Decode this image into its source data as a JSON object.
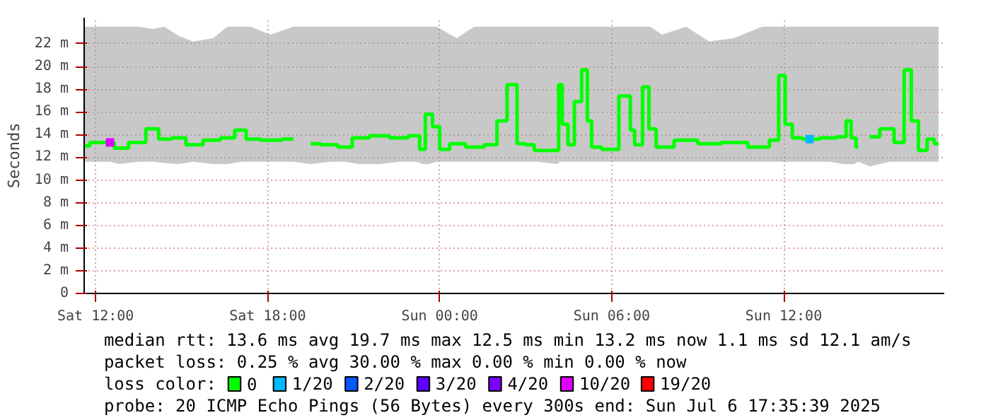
{
  "chart_data": {
    "type": "step",
    "ylabel": "Seconds",
    "legend_title": "loss color:",
    "legend": "bottom",
    "grid": true,
    "annotations": [
      "median rtt:  13.6 ms avg  19.7 ms max  12.5 ms min  13.2 ms now  1.1 ms sd  12.1   am/s",
      "packet loss: 0.25 % avg  30.00 % max  0.00 % min  0.00 % now",
      "probe:       20 ICMP Echo Pings (56 Bytes) every 300s            end: Sun Jul  6 17:35:39 2025"
    ],
    "xlim": [
      "2025-07-05T11:36",
      "2025-07-06T17:36"
    ],
    "ylim": [
      0,
      24.3
    ],
    "xticks": [
      {
        "value": "2025-07-05T12:00",
        "label": "Sat 12:00"
      },
      {
        "value": "2025-07-05T18:00",
        "label": "Sat 18:00"
      },
      {
        "value": "2025-07-06T00:00",
        "label": "Sun 00:00"
      },
      {
        "value": "2025-07-06T06:00",
        "label": "Sun 06:00"
      },
      {
        "value": "2025-07-06T12:00",
        "label": "Sun 12:00"
      }
    ],
    "yticks": [
      0,
      {
        "value": 2,
        "label": "2 m"
      },
      {
        "value": 4,
        "label": "4 m"
      },
      {
        "value": 6,
        "label": "6 m"
      },
      {
        "value": 8,
        "label": "8 m"
      },
      {
        "value": 10,
        "label": "10 m"
      },
      {
        "value": 12,
        "label": "12 m"
      },
      {
        "value": 14,
        "label": "14 m"
      },
      {
        "value": 16,
        "label": "16 m"
      },
      {
        "value": 18,
        "label": "18 m"
      },
      {
        "value": 20,
        "label": "20 m"
      },
      {
        "value": 22,
        "label": "22 m"
      }
    ],
    "x": [
      "2025-07-05T11:36",
      "2025-07-05T12:00",
      "2025-07-05T12:30",
      "2025-07-05T12:48",
      "2025-07-05T13:30",
      "2025-07-05T14:00",
      "2025-07-05T14:24",
      "2025-07-05T14:54",
      "2025-07-05T15:24",
      "2025-07-05T16:06",
      "2025-07-05T16:36",
      "2025-07-05T17:06",
      "2025-07-05T17:24",
      "2025-07-05T18:06",
      "2025-07-05T18:54",
      "2025-07-05T19:06",
      "2025-07-05T19:30",
      "2025-07-05T20:12",
      "2025-07-05T20:42",
      "2025-07-05T21:12",
      "2025-07-05T21:54",
      "2025-07-05T22:36",
      "2025-07-05T23:12",
      "2025-07-05T23:24",
      "2025-07-05T23:36",
      "2025-07-05T23:54",
      "2025-07-06T00:06",
      "2025-07-06T00:36",
      "2025-07-06T01:12",
      "2025-07-06T01:54",
      "2025-07-06T02:06",
      "2025-07-06T02:36",
      "2025-07-06T02:48",
      "2025-07-06T03:12",
      "2025-07-06T03:24",
      "2025-07-06T04:06",
      "2025-07-06T04:12",
      "2025-07-06T04:21",
      "2025-07-06T04:36",
      "2025-07-06T04:48",
      "2025-07-06T05:06",
      "2025-07-06T05:12",
      "2025-07-06T05:24",
      "2025-07-06T05:54",
      "2025-07-06T06:36",
      "2025-07-06T06:42",
      "2025-07-06T06:54",
      "2025-07-06T07:15",
      "2025-07-06T07:21",
      "2025-07-06T07:45",
      "2025-07-06T08:36",
      "2025-07-06T09:24",
      "2025-07-06T10:15",
      "2025-07-06T11:15",
      "2025-07-06T11:45",
      "2025-07-06T11:54",
      "2025-07-06T12:12",
      "2025-07-06T12:24",
      "2025-07-06T12:54",
      "2025-07-06T13:36",
      "2025-07-06T14:06",
      "2025-07-06T14:15",
      "2025-07-06T14:27",
      "2025-07-06T14:36",
      "2025-07-06T14:48",
      "2025-07-06T15:00",
      "2025-07-06T15:42",
      "2025-07-06T16:00",
      "2025-07-06T16:24",
      "2025-07-06T16:30",
      "2025-07-06T16:54",
      "2025-07-06T17:06",
      "2025-07-06T17:24"
    ],
    "series": [
      {
        "name": "0",
        "color": "#00ff00",
        "values": [
          13.0,
          13.3,
          13.3,
          12.8,
          13.3,
          14.5,
          13.6,
          13.7,
          13.1,
          13.5,
          13.7,
          14.4,
          13.6,
          13.5,
          13.6,
          null,
          13.2,
          13.1,
          12.9,
          13.7,
          13.9,
          13.7,
          13.9,
          12.7,
          15.8,
          14.7,
          12.7,
          13.2,
          12.9,
          13.1,
          15.2,
          18.4,
          13.2,
          13.1,
          12.6,
          12.6,
          18.4,
          14.9,
          13.1,
          16.9,
          19.7,
          15.2,
          12.9,
          12.7,
          17.4,
          14.4,
          13.1,
          18.2,
          14.5,
          12.9,
          13.5,
          13.2,
          13.3,
          12.9,
          13.5,
          19.2,
          14.9,
          13.7,
          13.6,
          13.7,
          13.8,
          15.2,
          13.7,
          12.9,
          null,
          13.8,
          14.5,
          13.3,
          19.7,
          15.2,
          12.6,
          13.6,
          13.2
        ],
        "lower": [
          11.6,
          11.6,
          11.6,
          11.4,
          11.6,
          11.6,
          11.5,
          11.4,
          11.6,
          11.4,
          11.4,
          11.6,
          11.6,
          11.6,
          11.6,
          null,
          11.4,
          11.6,
          11.6,
          11.4,
          11.4,
          11.6,
          11.6,
          11.4,
          11.4,
          11.6,
          11.6,
          11.6,
          11.6,
          11.6,
          11.6,
          11.6,
          11.6,
          11.6,
          11.6,
          11.4,
          11.6,
          11.6,
          11.6,
          11.6,
          11.6,
          11.6,
          11.6,
          11.6,
          11.6,
          11.6,
          11.6,
          11.6,
          11.6,
          11.6,
          11.6,
          11.6,
          11.6,
          11.6,
          11.6,
          11.6,
          11.6,
          11.6,
          11.6,
          11.6,
          11.4,
          11.4,
          11.4,
          11.6,
          null,
          11.2,
          11.6,
          11.6,
          11.6,
          11.6,
          11.6,
          11.6,
          11.6
        ],
        "upper": [
          23.5,
          23.5,
          23.5,
          23.5,
          23.5,
          23.3,
          23.5,
          22.7,
          22.2,
          22.5,
          23.5,
          23.5,
          23.5,
          22.8,
          23.5,
          null,
          23.5,
          23.5,
          23.5,
          23.5,
          23.5,
          23.5,
          23.5,
          23.5,
          23.5,
          23.5,
          23.2,
          22.5,
          23.5,
          23.5,
          23.5,
          23.5,
          23.5,
          23.5,
          23.5,
          23.5,
          23.5,
          23.5,
          23.5,
          23.5,
          23.5,
          23.5,
          23.5,
          23.5,
          23.5,
          23.5,
          23.5,
          23.5,
          23.5,
          22.8,
          23.5,
          22.2,
          22.5,
          23.5,
          23.5,
          23.5,
          23.5,
          23.5,
          23.5,
          23.5,
          23.5,
          23.5,
          23.5,
          23.5,
          null,
          23.5,
          23.5,
          23.5,
          23.5,
          23.5,
          23.5,
          23.5,
          23.5
        ]
      },
      {
        "name": "1/20",
        "color": "#00b8ff",
        "type": "scatter",
        "marker": "square",
        "x": [
          "2025-07-06T12:54"
        ],
        "values": [
          13.6
        ]
      },
      {
        "name": "2/20",
        "color": "#0059ff",
        "type": "scatter",
        "values": [
          null,
          null,
          null,
          null,
          null,
          null,
          null,
          null,
          null,
          null,
          null,
          null,
          null,
          null,
          null,
          null,
          null,
          null,
          null,
          null,
          null,
          null,
          null,
          null,
          null,
          null,
          null,
          null,
          null,
          null,
          null,
          null,
          null,
          null,
          null,
          null,
          null,
          null,
          null,
          null,
          null,
          null,
          null,
          null,
          null,
          null,
          null,
          null,
          null,
          null,
          null,
          null,
          null,
          null,
          null,
          null,
          null,
          null,
          null,
          null,
          null,
          null,
          null,
          null,
          null,
          null,
          null,
          null,
          null,
          null,
          null,
          null,
          null
        ]
      },
      {
        "name": "3/20",
        "color": "#5e00ff",
        "type": "scatter",
        "values": [
          null,
          null,
          null,
          null,
          null,
          null,
          null,
          null,
          null,
          null,
          null,
          null,
          null,
          null,
          null,
          null,
          null,
          null,
          null,
          null,
          null,
          null,
          null,
          null,
          null,
          null,
          null,
          null,
          null,
          null,
          null,
          null,
          null,
          null,
          null,
          null,
          null,
          null,
          null,
          null,
          null,
          null,
          null,
          null,
          null,
          null,
          null,
          null,
          null,
          null,
          null,
          null,
          null,
          null,
          null,
          null,
          null,
          null,
          null,
          null,
          null,
          null,
          null,
          null,
          null,
          null,
          null,
          null,
          null,
          null,
          null,
          null,
          null
        ]
      },
      {
        "name": "4/20",
        "color": "#7e00ff",
        "type": "scatter",
        "values": [
          null,
          null,
          null,
          null,
          null,
          null,
          null,
          null,
          null,
          null,
          null,
          null,
          null,
          null,
          null,
          null,
          null,
          null,
          null,
          null,
          null,
          null,
          null,
          null,
          null,
          null,
          null,
          null,
          null,
          null,
          null,
          null,
          null,
          null,
          null,
          null,
          null,
          null,
          null,
          null,
          null,
          null,
          null,
          null,
          null,
          null,
          null,
          null,
          null,
          null,
          null,
          null,
          null,
          null,
          null,
          null,
          null,
          null,
          null,
          null,
          null,
          null,
          null,
          null,
          null,
          null,
          null,
          null,
          null,
          null,
          null,
          null,
          null
        ]
      },
      {
        "name": "10/20",
        "color": "#dd00ff",
        "type": "scatter",
        "marker": "square",
        "x": [
          "2025-07-05T12:30"
        ],
        "values": [
          13.3
        ]
      },
      {
        "name": "19/20",
        "color": "#ff0000",
        "type": "scatter",
        "values": [
          null,
          null,
          null,
          null,
          null,
          null,
          null,
          null,
          null,
          null,
          null,
          null,
          null,
          null,
          null,
          null,
          null,
          null,
          null,
          null,
          null,
          null,
          null,
          null,
          null,
          null,
          null,
          null,
          null,
          null,
          null,
          null,
          null,
          null,
          null,
          null,
          null,
          null,
          null,
          null,
          null,
          null,
          null,
          null,
          null,
          null,
          null,
          null,
          null,
          null,
          null,
          null,
          null,
          null,
          null,
          null,
          null,
          null,
          null,
          null,
          null,
          null,
          null,
          null,
          null,
          null,
          null,
          null,
          null,
          null,
          null,
          null,
          null
        ]
      }
    ]
  }
}
